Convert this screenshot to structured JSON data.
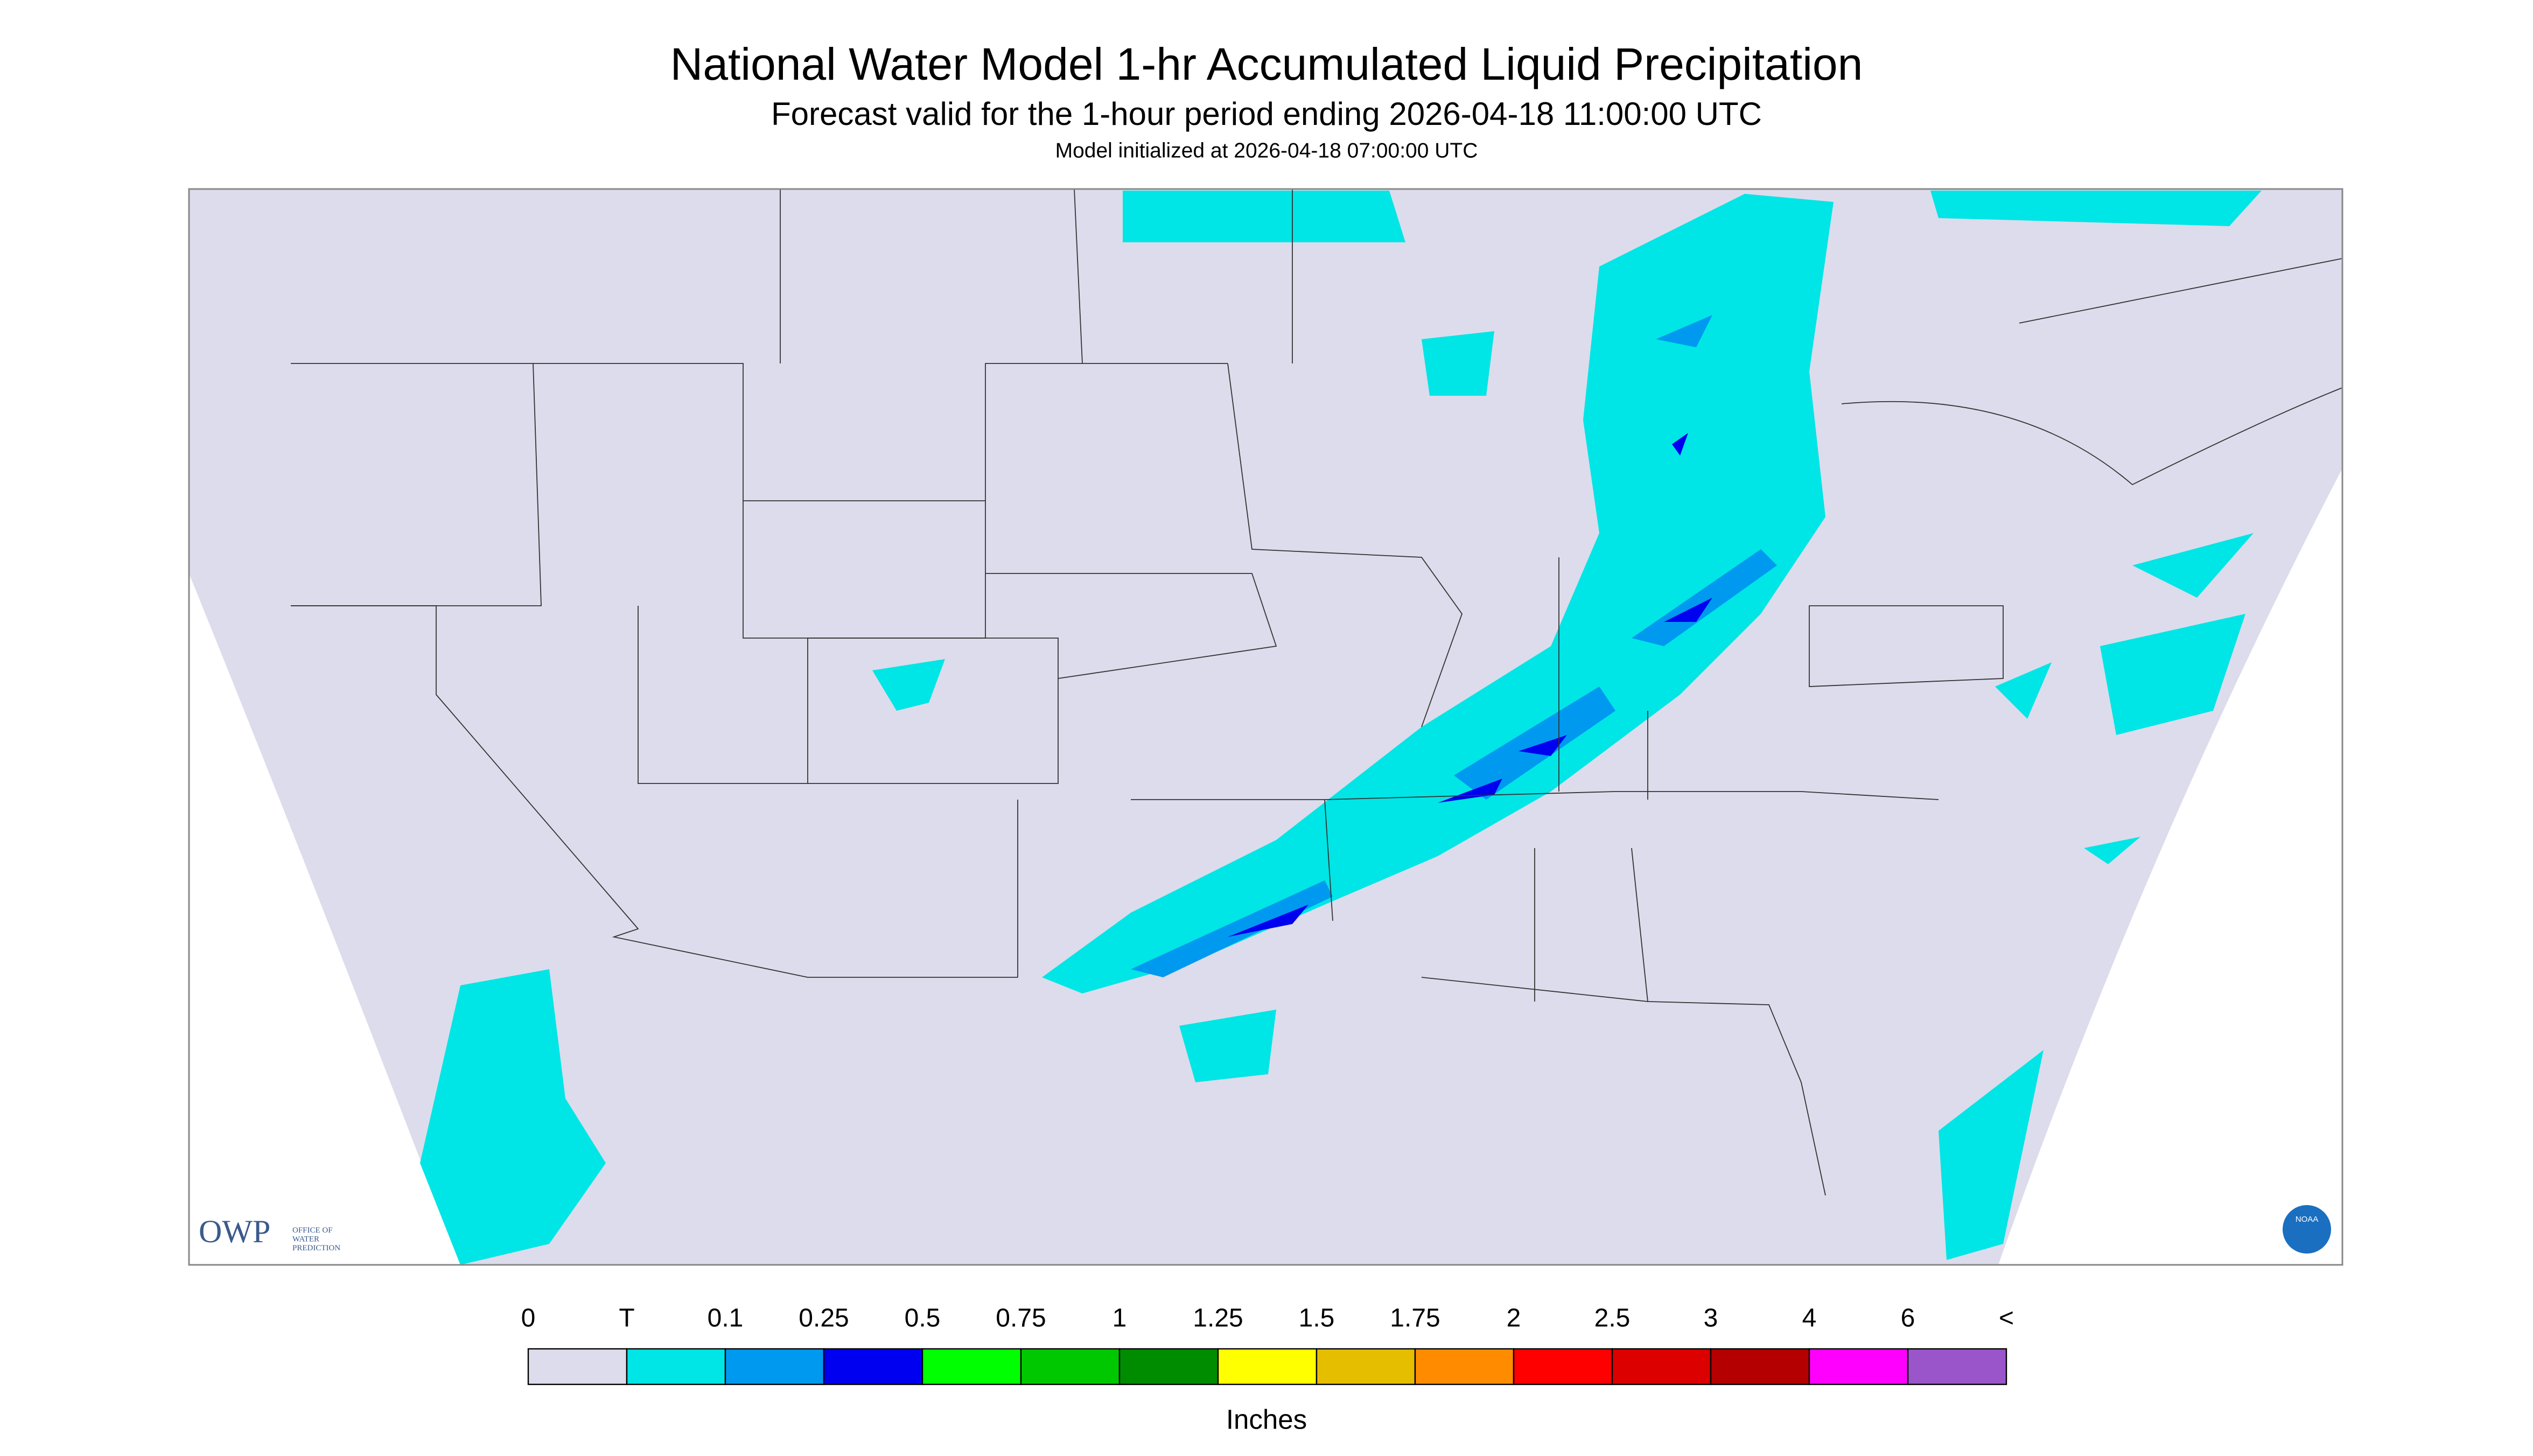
{
  "header": {
    "title": "National Water Model 1-hr Accumulated Liquid Precipitation",
    "subtitle": "Forecast valid for the 1-hour period ending 2026-04-18 11:00:00 UTC",
    "initialized": "Model initialized at 2026-04-18 07:00:00 UTC"
  },
  "legend": {
    "labels": [
      "0",
      "T",
      "0.1",
      "0.25",
      "0.5",
      "0.75",
      "1",
      "1.25",
      "1.5",
      "1.75",
      "2",
      "2.5",
      "3",
      "4",
      "6",
      "<"
    ],
    "colors": [
      "#dcdcec",
      "#00e5e5",
      "#0099f0",
      "#0000f0",
      "#00ff00",
      "#00c800",
      "#008c00",
      "#ffff00",
      "#e6be00",
      "#ff8c00",
      "#ff0000",
      "#dc0000",
      "#b40000",
      "#ff00ff",
      "#9955c9"
    ],
    "unit": "Inches"
  },
  "logos": {
    "owp": "OWP",
    "owp_lines": [
      "OFFICE OF",
      "WATER",
      "PREDICTION"
    ],
    "noaa": "NOAA"
  }
}
